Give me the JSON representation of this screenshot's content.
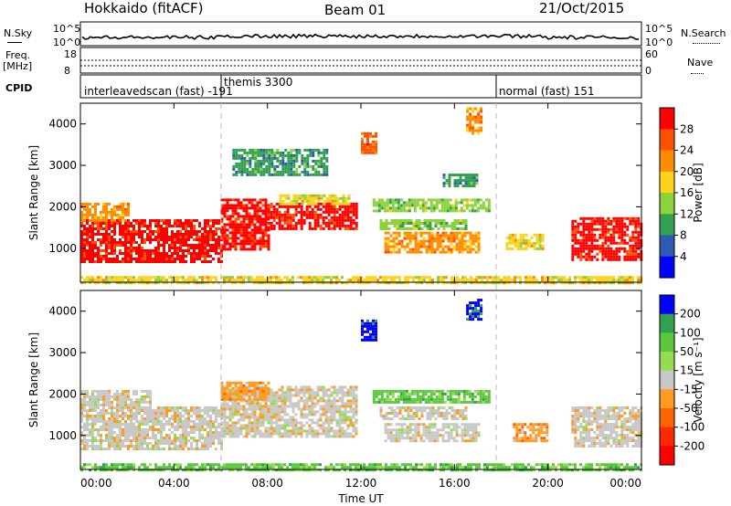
{
  "header": {
    "station": "Hokkaido (fitACF)",
    "beam": "Beam 01",
    "date": "21/Oct/2015"
  },
  "strip_noise": {
    "left_label": "N.Sky",
    "right_label": "N.Search",
    "left_top": "10^5",
    "left_bottom": "10^0",
    "right_top": "10^5",
    "right_bottom": "10^0"
  },
  "strip_freq": {
    "left_label_1": "Freq.",
    "left_label_2": "[MHz]",
    "left_top": "18",
    "left_bottom": "8",
    "right_top": "60",
    "right_bottom": "0",
    "right_label": "Nave"
  },
  "cpid": {
    "label": "CPID",
    "programs": [
      {
        "name": "interleavedscan (fast)  -191",
        "start": 0
      },
      {
        "name": "themis 3300",
        "start": 6
      },
      {
        "name": "normal (fast) 151",
        "start": 18
      }
    ]
  },
  "x_axis": {
    "label": "Time UT",
    "ticks": [
      "00:00",
      "04:00",
      "08:00",
      "12:00",
      "16:00",
      "20:00",
      "00:00"
    ]
  },
  "power_panel": {
    "ylabel": "Slant Range [km]",
    "colorbar_label": "Power [dB]"
  },
  "velocity_panel": {
    "ylabel": "Slant Range [km]",
    "colorbar_label": "Velocity [m s⁻¹]"
  },
  "chart_data": [
    {
      "type": "heatmap",
      "name": "power",
      "x_unit": "hours UT",
      "xlim": [
        0,
        24
      ],
      "ylim": [
        180,
        4500
      ],
      "yticks": [
        1000,
        2000,
        3000,
        4000
      ],
      "grid": false,
      "colorbar": {
        "ticks": [
          "28",
          "24",
          "20",
          "16",
          "12",
          "8",
          "4"
        ],
        "colors": [
          "#ff0000",
          "#ff5000",
          "#ff8c00",
          "#ffd21e",
          "#8cd23c",
          "#32a050",
          "#2d5ab4",
          "#0000ff"
        ]
      },
      "regions": [
        {
          "x": [
            0.0,
            6.0
          ],
          "y": [
            650,
            1700
          ],
          "level": "28"
        },
        {
          "x": [
            0.0,
            2.0
          ],
          "y": [
            1700,
            2100
          ],
          "level": "20"
        },
        {
          "x": [
            6.0,
            8.0
          ],
          "y": [
            1000,
            2200
          ],
          "level": "28"
        },
        {
          "x": [
            8.0,
            11.8
          ],
          "y": [
            1500,
            2100
          ],
          "level": "28"
        },
        {
          "x": [
            8.5,
            11.5
          ],
          "y": [
            2100,
            2300
          ],
          "level": "16"
        },
        {
          "x": [
            6.5,
            10.5
          ],
          "y": [
            2800,
            3400
          ],
          "level": "8"
        },
        {
          "x": [
            13.0,
            17.0
          ],
          "y": [
            900,
            1400
          ],
          "level": "20"
        },
        {
          "x": [
            12.5,
            17.5
          ],
          "y": [
            1900,
            2200
          ],
          "level": "12"
        },
        {
          "x": [
            12.8,
            16.5
          ],
          "y": [
            1450,
            1700
          ],
          "level": "12"
        },
        {
          "x": [
            15.5,
            17.0
          ],
          "y": [
            2500,
            2800
          ],
          "level": "8"
        },
        {
          "x": [
            16.5,
            17.2
          ],
          "y": [
            3800,
            4400
          ],
          "level": "20"
        },
        {
          "x": [
            18.2,
            19.8
          ],
          "y": [
            1000,
            1350
          ],
          "level": "16"
        },
        {
          "x": [
            21.0,
            24.0
          ],
          "y": [
            750,
            1750
          ],
          "level": "28"
        },
        {
          "x": [
            12.0,
            12.6
          ],
          "y": [
            3300,
            3800
          ],
          "level": "24"
        },
        {
          "x": [
            0.0,
            24.0
          ],
          "y": [
            180,
            330
          ],
          "level": "16"
        }
      ]
    },
    {
      "type": "heatmap",
      "name": "velocity",
      "x_unit": "hours UT",
      "xlim": [
        0,
        24
      ],
      "ylim": [
        180,
        4500
      ],
      "yticks": [
        1000,
        2000,
        3000,
        4000
      ],
      "grid": false,
      "colorbar": {
        "ticks": [
          "200",
          "100",
          "50",
          "15",
          "-15",
          "-50",
          "-100",
          "-200"
        ],
        "colors": [
          "#0000ff",
          "#32a050",
          "#5ac83c",
          "#96dc50",
          "#c8c8c8",
          "#ff9b1e",
          "#ff6400",
          "#ff2800",
          "#ff0000"
        ]
      },
      "regions": [
        {
          "x": [
            0.0,
            6.0
          ],
          "y": [
            650,
            1700
          ],
          "level": "-15"
        },
        {
          "x": [
            0.0,
            3.0
          ],
          "y": [
            1700,
            2100
          ],
          "level": "-15"
        },
        {
          "x": [
            6.0,
            11.8
          ],
          "y": [
            1000,
            2200
          ],
          "level": "-15"
        },
        {
          "x": [
            6.0,
            8.0
          ],
          "y": [
            1900,
            2300
          ],
          "level": "-50"
        },
        {
          "x": [
            12.0,
            12.6
          ],
          "y": [
            3300,
            3800
          ],
          "level": "200"
        },
        {
          "x": [
            16.5,
            17.2
          ],
          "y": [
            3800,
            4300
          ],
          "level": "200"
        },
        {
          "x": [
            13.0,
            17.0
          ],
          "y": [
            900,
            1300
          ],
          "level": "-15"
        },
        {
          "x": [
            12.5,
            17.5
          ],
          "y": [
            1800,
            2100
          ],
          "level": "50"
        },
        {
          "x": [
            12.8,
            16.5
          ],
          "y": [
            1400,
            1700
          ],
          "level": "-15"
        },
        {
          "x": [
            18.5,
            20.0
          ],
          "y": [
            900,
            1300
          ],
          "level": "-50"
        },
        {
          "x": [
            21.0,
            24.0
          ],
          "y": [
            750,
            1700
          ],
          "level": "-15"
        },
        {
          "x": [
            0.0,
            24.0
          ],
          "y": [
            180,
            330
          ],
          "level": "50"
        }
      ]
    }
  ]
}
